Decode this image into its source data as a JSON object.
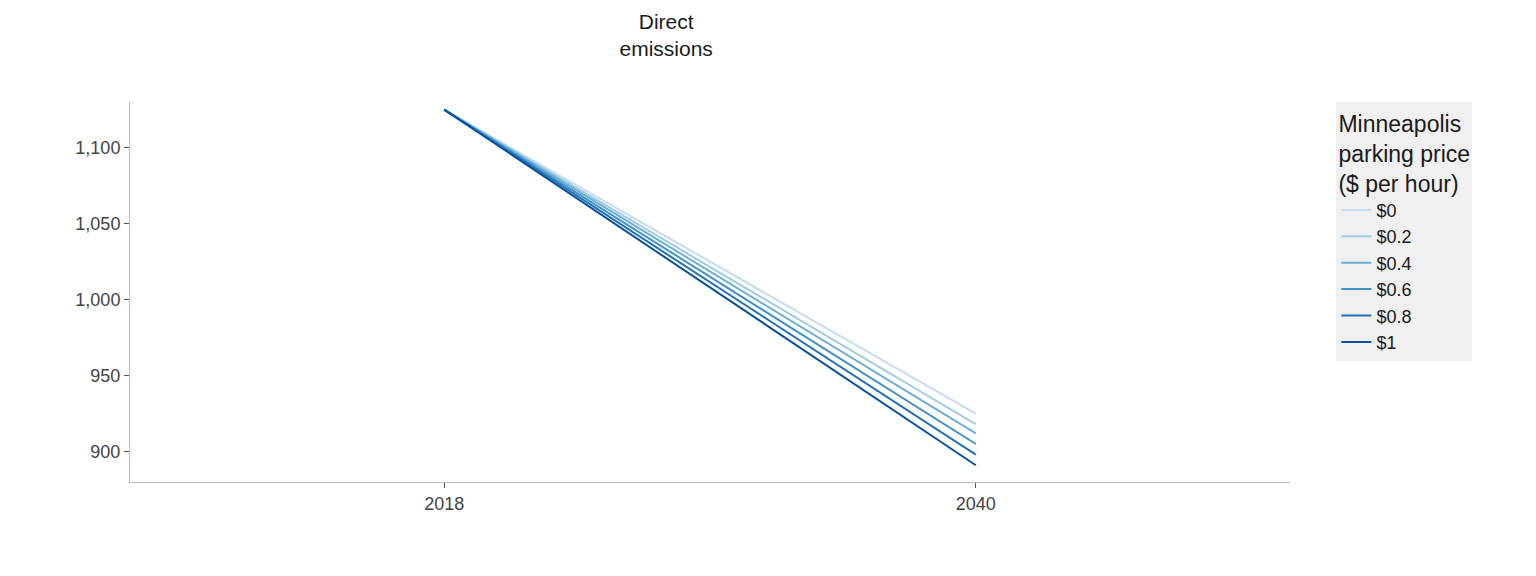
{
  "chart_data": {
    "type": "line",
    "title": "Direct\nemissions",
    "legend_title": "Minneapolis\nparking price\n($ per hour)",
    "x": [
      2018,
      2040
    ],
    "series": [
      {
        "name": "$0",
        "color": "#c6dbef",
        "values": [
          1125,
          925
        ]
      },
      {
        "name": "$0.2",
        "color": "#9ecae1",
        "values": [
          1125,
          918
        ]
      },
      {
        "name": "$0.4",
        "color": "#6baed6",
        "values": [
          1125,
          912
        ]
      },
      {
        "name": "$0.6",
        "color": "#4292c6",
        "values": [
          1125,
          905
        ]
      },
      {
        "name": "$0.8",
        "color": "#2171b5",
        "values": [
          1125,
          898
        ]
      },
      {
        "name": "$1",
        "color": "#08519c",
        "values": [
          1125,
          891
        ]
      }
    ],
    "xlim": [
      2005,
      2053
    ],
    "xticks": [
      2018,
      2040
    ],
    "ylim": [
      880,
      1130
    ],
    "yticks": [
      900,
      950,
      {
        "value": 1000,
        "label": "1,000"
      },
      {
        "value": 1050,
        "label": "1,050"
      },
      {
        "value": 1100,
        "label": "1,100"
      }
    ],
    "grid": false,
    "legend": "right"
  }
}
